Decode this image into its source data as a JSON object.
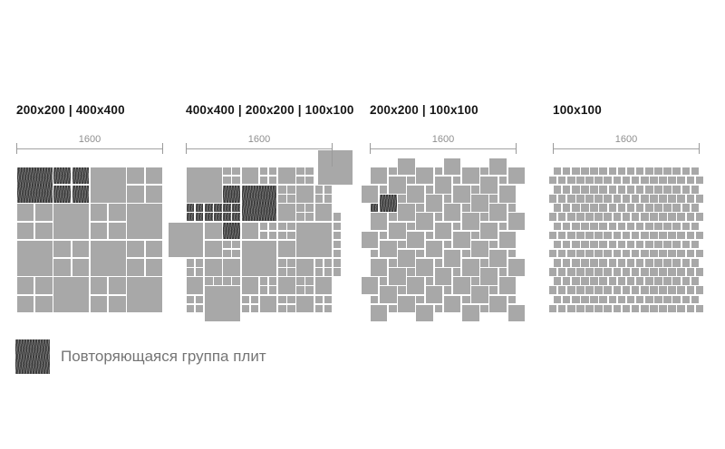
{
  "colors": {
    "tile": "#a8a8a8",
    "gap": "#ffffff",
    "hatch_background": "#3a3a3a",
    "dimension_line": "#a3a3a3",
    "dimension_text": "#8f8f8f",
    "title_text": "#161616",
    "legend_text": "#757575"
  },
  "legend": {
    "swatch": "hatched-dark-square",
    "label": "Повторяющаяся группа плит"
  },
  "diagrams": [
    {
      "title": "200x200 | 400x400",
      "dim_label": "1600",
      "pattern": "checkerboard",
      "cells": [
        [
          "400h",
          "quadh",
          "400",
          "quad"
        ],
        [
          "quad",
          "400",
          "quad",
          "400"
        ],
        [
          "400",
          "quad",
          "400",
          "quad"
        ],
        [
          "quad",
          "400",
          "quad",
          "400"
        ]
      ]
    },
    {
      "title": "400x400 | 200x200 | 100x100",
      "dim_label": "1600",
      "pattern": "tiles",
      "tiles": [
        [
          0,
          0,
          4,
          0
        ],
        [
          4,
          0,
          "q",
          0
        ],
        [
          6,
          0,
          2,
          0
        ],
        [
          8,
          0,
          "q",
          0
        ],
        [
          10,
          0,
          2,
          0
        ],
        [
          12,
          0,
          "q",
          0
        ],
        [
          4,
          2,
          2,
          1
        ],
        [
          6,
          2,
          4,
          1
        ],
        [
          10,
          2,
          "q",
          0
        ],
        [
          12,
          2,
          2,
          0
        ],
        [
          14,
          2,
          "q",
          0
        ],
        [
          0,
          4,
          "q",
          1
        ],
        [
          2,
          4,
          "q",
          1
        ],
        [
          4,
          4,
          "q",
          1
        ],
        [
          10,
          4,
          2,
          0
        ],
        [
          12,
          4,
          "q",
          0
        ],
        [
          14,
          4,
          2,
          0
        ],
        [
          2,
          6,
          2,
          0
        ],
        [
          4,
          6,
          2,
          1
        ],
        [
          6,
          6,
          2,
          0
        ],
        [
          8,
          6,
          "q",
          0
        ],
        [
          10,
          6,
          "q",
          0
        ],
        [
          12,
          6,
          4,
          0
        ],
        [
          2,
          8,
          2,
          0
        ],
        [
          4,
          8,
          "q",
          0
        ],
        [
          6,
          8,
          4,
          0
        ],
        [
          10,
          8,
          2,
          0
        ],
        [
          0,
          10,
          "q",
          0
        ],
        [
          2,
          10,
          2,
          0
        ],
        [
          4,
          10,
          2,
          0
        ],
        [
          10,
          10,
          "q",
          0
        ],
        [
          12,
          10,
          2,
          0
        ],
        [
          14,
          10,
          "q",
          0
        ],
        [
          0,
          12,
          2,
          0
        ],
        [
          2,
          12,
          1,
          0
        ],
        [
          3,
          12,
          1,
          0
        ],
        [
          4,
          12,
          1,
          0
        ],
        [
          5,
          12,
          1,
          0
        ],
        [
          6,
          12,
          2,
          0
        ],
        [
          8,
          12,
          "q",
          0
        ],
        [
          10,
          12,
          2,
          0
        ],
        [
          12,
          12,
          "q",
          0
        ],
        [
          14,
          12,
          2,
          0
        ],
        [
          0,
          14,
          "q",
          0
        ],
        [
          6,
          14,
          "q",
          0
        ],
        [
          8,
          14,
          2,
          0
        ],
        [
          10,
          14,
          "q",
          0
        ],
        [
          12,
          14,
          2,
          0
        ],
        [
          14,
          14,
          "q",
          0
        ],
        [
          16,
          5,
          1,
          0
        ],
        [
          16,
          6,
          1,
          0
        ],
        [
          16,
          7,
          1,
          0
        ],
        [
          16,
          8,
          1,
          0
        ],
        [
          16,
          9,
          1,
          0
        ],
        [
          16,
          10,
          1,
          0
        ],
        [
          16,
          11,
          1,
          0
        ],
        [
          14.3,
          -1.9,
          4,
          0
        ],
        [
          -2,
          6,
          4,
          0
        ],
        [
          2,
          13,
          4,
          0
        ]
      ]
    },
    {
      "title": "200x200 | 100x100",
      "dim_label": "1600",
      "pattern": "pinwheel",
      "big": 2,
      "small": 1,
      "vec_i": [
        2,
        1
      ],
      "vec_j": [
        -1,
        2
      ],
      "small_offset": [
        -1,
        1
      ],
      "hatched_group": [
        1,
        1
      ],
      "extent": 16
    },
    {
      "title": "100x100",
      "dim_label": "1600",
      "pattern": "brick",
      "rows": 16,
      "cols": 16
    }
  ]
}
